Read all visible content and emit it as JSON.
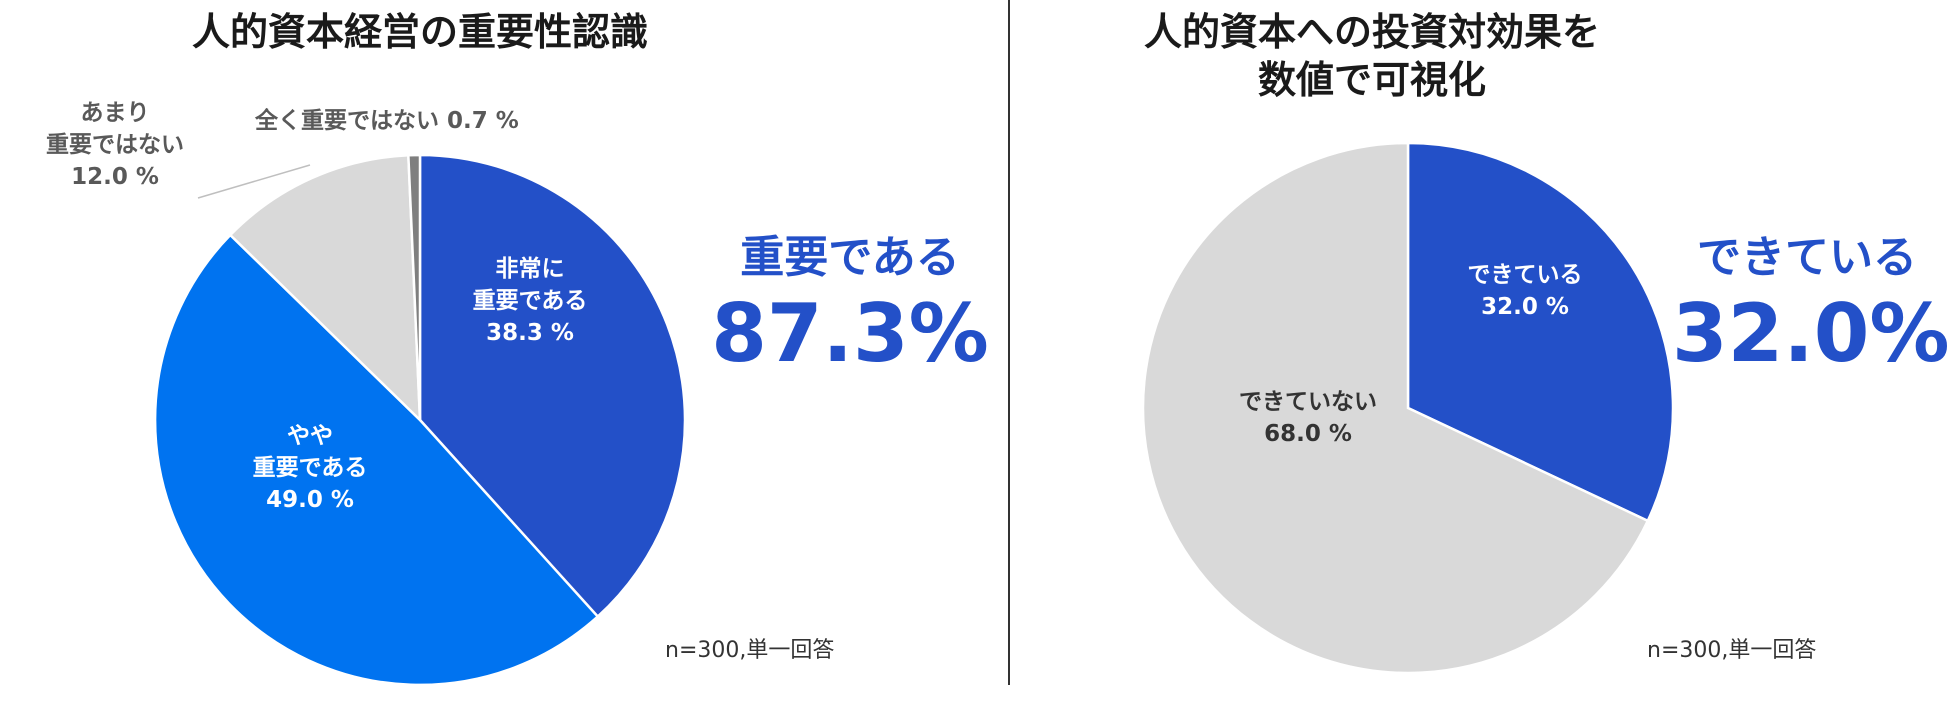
{
  "chart_data": [
    {
      "type": "pie",
      "title": "人的資本経営の重要性認識",
      "slices": [
        {
          "label": [
            "非常に",
            "重要である"
          ],
          "value": 38.3,
          "value_label": "38.3 %",
          "color": "#2350c8",
          "text_color": "#ffffff"
        },
        {
          "label": [
            "やや",
            "重要である"
          ],
          "value": 49.0,
          "value_label": "49.0 %",
          "color": "#0073f0",
          "text_color": "#ffffff"
        },
        {
          "label": [
            "あまり",
            "重要ではない"
          ],
          "value": 12.0,
          "value_label": "12.0 %",
          "color": "#d9d9d9",
          "text_color": "#595959"
        },
        {
          "label": [
            "全く重要ではない"
          ],
          "value": 0.7,
          "value_label": "0.7 %",
          "color": "#7f7f7f",
          "text_color": "#595959"
        }
      ],
      "highlight": {
        "category": "重要である",
        "value": "87.3%"
      },
      "note": "n=300,単一回答"
    },
    {
      "type": "pie",
      "title": [
        "人的資本への投資対効果を",
        "数値で可視化"
      ],
      "slices": [
        {
          "label": [
            "できている"
          ],
          "value": 32.0,
          "value_label": "32.0 %",
          "color": "#2350c8",
          "text_color": "#ffffff"
        },
        {
          "label": [
            "できていない"
          ],
          "value": 68.0,
          "value_label": "68.0 %",
          "color": "#d9d9d9",
          "text_color": "#333333"
        }
      ],
      "highlight": {
        "category": "できている",
        "value": "32.0%"
      },
      "note": "n=300,単一回答"
    }
  ]
}
